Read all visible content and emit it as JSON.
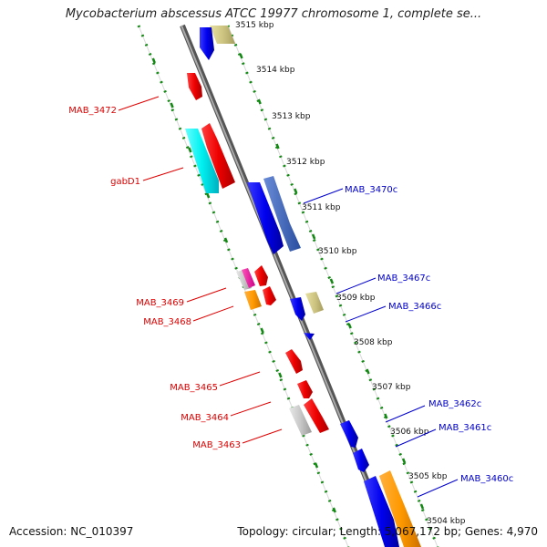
{
  "title": "Mycobacterium abscessus ATCC 19977 chromosome 1, complete se...",
  "accession": "Accession: NC_010397",
  "stats": "Topology: circular; Length: 5,067,172 bp; Genes: 4,970",
  "ticks": [
    "3515 kbp",
    "3514 kbp",
    "3513 kbp",
    "3512 kbp",
    "3511 kbp",
    "3510 kbp",
    "3509 kbp",
    "3508 kbp",
    "3507 kbp",
    "3506 kbp",
    "3505 kbp",
    "3504 kbp"
  ],
  "genes_left": [
    "MAB_3472",
    "gabD1",
    "MAB_3469",
    "MAB_3468",
    "MAB_3465",
    "MAB_3464",
    "MAB_3463"
  ],
  "genes_right": [
    "MAB_3470c",
    "MAB_3467c",
    "MAB_3466c",
    "MAB_3462c",
    "MAB_3461c",
    "MAB_3460c"
  ],
  "colors": {
    "forward_label": "#dd0000",
    "reverse_label": "#0000cc",
    "backbone": "#888888",
    "track_dots": "#118811"
  }
}
